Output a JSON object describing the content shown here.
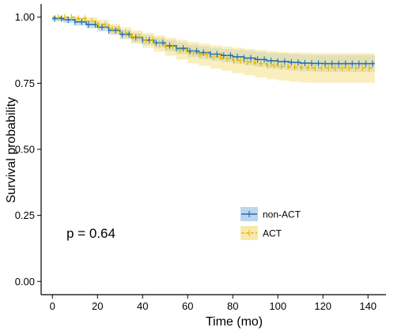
{
  "chart_data": {
    "type": "line",
    "subtype": "kaplan-meier survival curve with confidence bands",
    "xlabel": "Time (mo)",
    "ylabel": "Survival probability",
    "xlim": [
      -5,
      148
    ],
    "ylim": [
      -0.05,
      1.05
    ],
    "xticks": [
      0,
      20,
      40,
      60,
      80,
      100,
      120,
      140
    ],
    "xtick_labels": [
      "0",
      "20",
      "40",
      "60",
      "80",
      "100",
      "120",
      "140"
    ],
    "yticks": [
      0,
      0.25,
      0.5,
      0.75,
      1.0
    ],
    "ytick_labels": [
      "0.00",
      "0.25",
      "0.50",
      "0.75",
      "1.00"
    ],
    "grid": false,
    "legend_position": "bottom-right",
    "annotation": "p = 0.64",
    "series": [
      {
        "name": "non-ACT",
        "color": "#1f6fb2",
        "band_color": "#9ec4e4",
        "line_style": "solid",
        "x": [
          0,
          5,
          10,
          15,
          20,
          25,
          30,
          35,
          40,
          45,
          50,
          55,
          60,
          65,
          70,
          75,
          80,
          85,
          90,
          95,
          100,
          105,
          110,
          115,
          120,
          125,
          130,
          135,
          140,
          143
        ],
        "y": [
          0.995,
          0.99,
          0.982,
          0.972,
          0.962,
          0.95,
          0.935,
          0.923,
          0.913,
          0.903,
          0.892,
          0.882,
          0.872,
          0.866,
          0.86,
          0.855,
          0.85,
          0.845,
          0.84,
          0.835,
          0.832,
          0.829,
          0.826,
          0.825,
          0.824,
          0.824,
          0.824,
          0.824,
          0.824,
          0.824
        ],
        "ci_lower": [
          0.985,
          0.978,
          0.968,
          0.958,
          0.947,
          0.934,
          0.918,
          0.905,
          0.894,
          0.883,
          0.871,
          0.86,
          0.849,
          0.842,
          0.836,
          0.83,
          0.824,
          0.818,
          0.812,
          0.806,
          0.802,
          0.798,
          0.795,
          0.794,
          0.792,
          0.792,
          0.792,
          0.792,
          0.792,
          0.792
        ],
        "ci_upper": [
          1.0,
          1.0,
          0.995,
          0.986,
          0.977,
          0.966,
          0.952,
          0.941,
          0.932,
          0.923,
          0.913,
          0.904,
          0.895,
          0.89,
          0.884,
          0.88,
          0.876,
          0.872,
          0.868,
          0.864,
          0.862,
          0.86,
          0.857,
          0.856,
          0.856,
          0.856,
          0.856,
          0.856,
          0.856,
          0.856
        ]
      },
      {
        "name": "ACT",
        "color": "#e8b800",
        "band_color": "#f5e088",
        "line_style": "dashed",
        "x": [
          0,
          5,
          10,
          15,
          20,
          25,
          30,
          35,
          40,
          45,
          50,
          55,
          60,
          65,
          70,
          75,
          80,
          85,
          90,
          95,
          100,
          105,
          110,
          115,
          120,
          125,
          130,
          135,
          140,
          143
        ],
        "y": [
          1.0,
          1.0,
          0.995,
          0.985,
          0.972,
          0.955,
          0.94,
          0.925,
          0.912,
          0.9,
          0.888,
          0.877,
          0.866,
          0.858,
          0.85,
          0.843,
          0.836,
          0.83,
          0.824,
          0.818,
          0.814,
          0.811,
          0.809,
          0.808,
          0.808,
          0.808,
          0.808,
          0.808,
          0.808,
          0.808
        ],
        "ci_lower": [
          0.99,
          0.99,
          0.982,
          0.97,
          0.955,
          0.936,
          0.918,
          0.9,
          0.884,
          0.869,
          0.854,
          0.84,
          0.826,
          0.816,
          0.806,
          0.797,
          0.788,
          0.78,
          0.772,
          0.765,
          0.76,
          0.756,
          0.753,
          0.752,
          0.752,
          0.752,
          0.752,
          0.752,
          0.752,
          0.752
        ],
        "ci_upper": [
          1.0,
          1.0,
          1.0,
          1.0,
          0.99,
          0.975,
          0.962,
          0.95,
          0.94,
          0.931,
          0.922,
          0.914,
          0.906,
          0.9,
          0.894,
          0.889,
          0.884,
          0.88,
          0.876,
          0.871,
          0.868,
          0.866,
          0.865,
          0.864,
          0.864,
          0.864,
          0.864,
          0.864,
          0.864,
          0.864
        ]
      }
    ]
  }
}
